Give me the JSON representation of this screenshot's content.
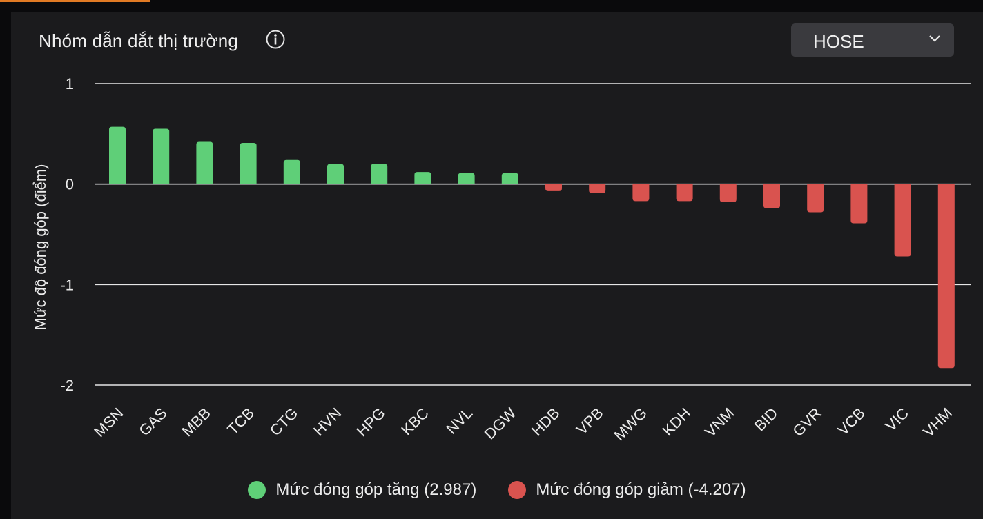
{
  "header": {
    "title": "Nhóm dẫn dắt thị trường",
    "exchange_selected": "HOSE"
  },
  "icons": {
    "info": "info-circle-icon",
    "dropdown": "chevron-down-icon"
  },
  "colors": {
    "positive": "#5fcf78",
    "negative": "#d9534f",
    "accent": "#e07a24"
  },
  "legend": {
    "positive_label": "Mức đóng góp tăng (2.987)",
    "negative_label": "Mức đóng góp giảm (-4.207)"
  },
  "chart_data": {
    "type": "bar",
    "ylabel": "Mức độ đóng góp (điểm)",
    "xlabel": "",
    "ylim": [
      -2,
      1
    ],
    "yticks": [
      1,
      0,
      -1,
      -2
    ],
    "grid": true,
    "legend_position": "bottom",
    "categories": [
      "MSN",
      "GAS",
      "MBB",
      "TCB",
      "CTG",
      "HVN",
      "HPG",
      "KBC",
      "NVL",
      "DGW",
      "HDB",
      "VPB",
      "MWG",
      "KDH",
      "VNM",
      "BID",
      "GVR",
      "VCB",
      "VIC",
      "VHM"
    ],
    "values": [
      0.57,
      0.55,
      0.42,
      0.41,
      0.24,
      0.2,
      0.2,
      0.12,
      0.11,
      0.11,
      -0.07,
      -0.09,
      -0.17,
      -0.17,
      -0.18,
      -0.24,
      -0.28,
      -0.39,
      -0.72,
      -1.83
    ]
  }
}
